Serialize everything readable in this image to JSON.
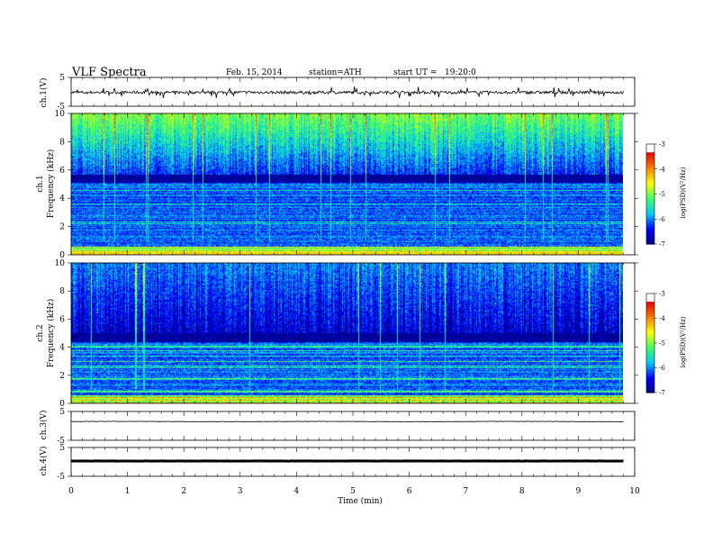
{
  "header": {
    "title": "VLF Spectra",
    "date": "Feb. 15, 2014",
    "station": "station=ATH",
    "start_label": "start UT =",
    "start_time": "19:20:0"
  },
  "chart_data": [
    {
      "type": "line",
      "id": "ch1",
      "ylabel": "ch.1(V)",
      "ylim": [
        -5,
        5
      ],
      "yticks": [
        "5",
        "-5"
      ],
      "trace_mean": -0.2,
      "trace_noise": "high",
      "color": "#000000"
    },
    {
      "type": "heatmap",
      "id": "spec1",
      "ylabel_line1": "ch.1",
      "ylabel_line2": "Frequency (kHz)",
      "ylim": [
        0,
        10
      ],
      "yticks": [
        "0",
        "2",
        "4",
        "6",
        "8",
        "10"
      ],
      "x_end_min": 9.8,
      "band_top_khz": 5.7,
      "upper_level": 0.55,
      "colorbar": {
        "label": "log(PSD)(V²/Hz)",
        "ticks": [
          "-3",
          "-4",
          "-5",
          "-6",
          "-7"
        ],
        "range": [
          -7,
          -3
        ]
      }
    },
    {
      "type": "heatmap",
      "id": "spec2",
      "ylabel_line1": "ch.2",
      "ylabel_line2": "Frequency (kHz)",
      "ylim": [
        0,
        10
      ],
      "yticks": [
        "0",
        "2",
        "4",
        "6",
        "8",
        "10"
      ],
      "x_end_min": 9.8,
      "band_top_khz": 5.0,
      "upper_level": 0.28,
      "colorbar": {
        "label": "log(PSD)(V²/Hz)",
        "ticks": [
          "-3",
          "-4",
          "-5",
          "-6",
          "-7"
        ],
        "range": [
          -7,
          -3
        ]
      }
    },
    {
      "type": "line",
      "id": "ch3",
      "ylabel": "ch.3(V)",
      "ylim": [
        -5,
        5
      ],
      "yticks": [
        "5",
        "-5"
      ],
      "trace_mean": 1.5,
      "trace_noise": "low",
      "color": "#000000"
    },
    {
      "type": "line",
      "id": "ch4",
      "ylabel": "ch.4(V)",
      "ylim": [
        -5,
        5
      ],
      "yticks": [
        "5",
        "-5"
      ],
      "trace_mean": 0.3,
      "trace_noise": "thick",
      "color": "#000000"
    }
  ],
  "x_axis": {
    "label": "Time (min)",
    "range": [
      0,
      10
    ],
    "ticks": [
      "0",
      "1",
      "2",
      "3",
      "4",
      "5",
      "6",
      "7",
      "8",
      "9",
      "10"
    ]
  },
  "colors": {
    "colormap": [
      "#00007f",
      "#0000ff",
      "#00c8ff",
      "#3cff64",
      "#ffff00",
      "#ff8000",
      "#e60000",
      "#ffffff"
    ]
  }
}
